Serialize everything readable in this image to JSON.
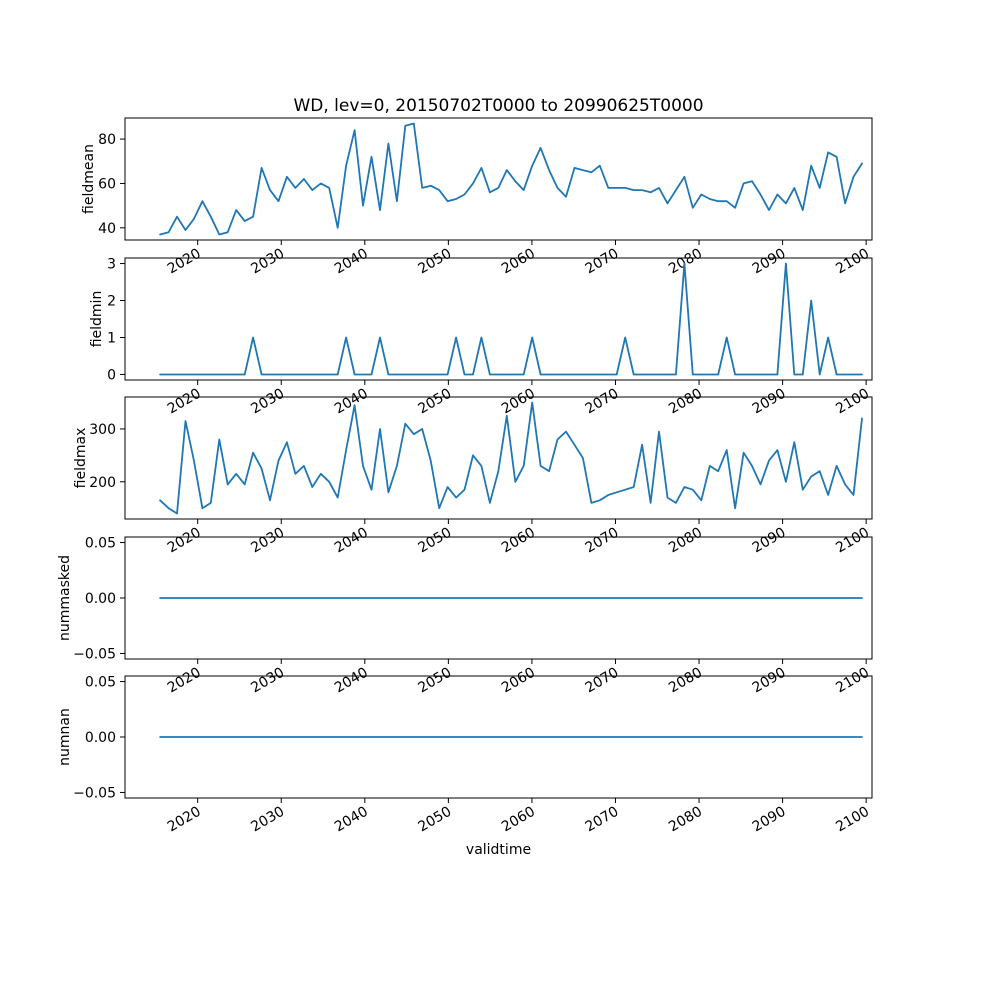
{
  "figure": {
    "title": "WD, lev=0, 20150702T0000 to 20990625T0000",
    "xlabel": "validtime",
    "line_color": "#1f77b4",
    "xlim": [
      2011.3,
      2100.7
    ],
    "x_tick_labels": [
      "2020",
      "2030",
      "2040",
      "2050",
      "2060",
      "2070",
      "2080",
      "2090",
      "2100"
    ]
  },
  "chart_data": [
    {
      "type": "line",
      "name": "fieldmean",
      "ylabel": "fieldmean",
      "ytick_values": [
        40,
        60,
        80
      ],
      "ytick_labels": [
        "40",
        "60",
        "80"
      ],
      "ylim": [
        34.5,
        89.5
      ],
      "x_start": 2015.5,
      "x_end": 2099.5,
      "values": [
        37,
        38,
        45,
        39,
        44,
        52,
        45,
        37,
        38,
        48,
        43,
        45,
        67,
        57,
        52,
        63,
        58,
        62,
        57,
        60,
        58,
        40,
        68,
        84,
        50,
        72,
        48,
        78,
        52,
        86,
        87,
        58,
        59,
        57,
        52,
        53,
        55,
        60,
        67,
        56,
        58,
        66,
        61,
        57,
        68,
        76,
        66,
        58,
        54,
        67,
        66,
        65,
        68,
        58,
        58,
        58,
        57,
        57,
        56,
        58,
        51,
        57,
        63,
        49,
        55,
        53,
        52,
        52,
        49,
        60,
        61,
        55,
        48,
        55,
        51,
        58,
        48,
        68,
        58,
        74,
        72,
        51,
        63,
        69
      ]
    },
    {
      "type": "line",
      "name": "fieldmin",
      "ylabel": "fieldmin",
      "ytick_values": [
        0,
        1,
        2,
        3
      ],
      "ytick_labels": [
        "0",
        "1",
        "2",
        "3"
      ],
      "ylim": [
        -0.15,
        3.15
      ],
      "x_start": 2015.5,
      "x_end": 2099.5,
      "values": [
        0,
        0,
        0,
        0,
        0,
        0,
        0,
        0,
        0,
        0,
        0,
        1,
        0,
        0,
        0,
        0,
        0,
        0,
        0,
        0,
        0,
        0,
        1,
        0,
        0,
        0,
        1,
        0,
        0,
        0,
        0,
        0,
        0,
        0,
        0,
        1,
        0,
        0,
        1,
        0,
        0,
        0,
        0,
        0,
        1,
        0,
        0,
        0,
        0,
        0,
        0,
        0,
        0,
        0,
        0,
        1,
        0,
        0,
        0,
        0,
        0,
        0,
        3,
        0,
        0,
        0,
        0,
        1,
        0,
        0,
        0,
        0,
        0,
        0,
        3,
        0,
        0,
        2,
        0,
        1,
        0,
        0,
        0,
        0
      ]
    },
    {
      "type": "line",
      "name": "fieldmax",
      "ylabel": "fieldmax",
      "ytick_values": [
        200,
        300
      ],
      "ytick_labels": [
        "200",
        "300"
      ],
      "ylim": [
        129.5,
        360.5
      ],
      "x_start": 2015.5,
      "x_end": 2099.5,
      "values": [
        165,
        150,
        140,
        315,
        240,
        150,
        160,
        280,
        195,
        215,
        195,
        255,
        225,
        165,
        240,
        275,
        215,
        230,
        190,
        215,
        200,
        170,
        260,
        345,
        230,
        185,
        300,
        180,
        230,
        310,
        290,
        300,
        240,
        150,
        190,
        170,
        185,
        250,
        230,
        160,
        220,
        325,
        200,
        230,
        350,
        230,
        220,
        280,
        295,
        270,
        245,
        160,
        165,
        175,
        180,
        185,
        190,
        270,
        160,
        295,
        170,
        160,
        190,
        185,
        165,
        230,
        220,
        260,
        150,
        255,
        230,
        195,
        240,
        260,
        200,
        275,
        185,
        210,
        220,
        175,
        230,
        195,
        175,
        320
      ]
    },
    {
      "type": "line",
      "name": "nummasked",
      "ylabel": "nummasked",
      "ytick_values": [
        -0.05,
        0,
        0.05
      ],
      "ytick_labels": [
        "−0.05",
        "0.00",
        "0.05"
      ],
      "ylim": [
        -0.055,
        0.055
      ],
      "x_start": 2015.5,
      "x_end": 2099.5,
      "values": [
        0,
        0,
        0,
        0,
        0,
        0,
        0,
        0,
        0,
        0,
        0,
        0,
        0,
        0,
        0,
        0,
        0,
        0,
        0,
        0,
        0,
        0,
        0,
        0,
        0,
        0,
        0,
        0,
        0,
        0,
        0,
        0,
        0,
        0,
        0,
        0,
        0,
        0,
        0,
        0,
        0,
        0,
        0,
        0,
        0,
        0,
        0,
        0,
        0,
        0,
        0,
        0,
        0,
        0,
        0,
        0,
        0,
        0,
        0,
        0,
        0,
        0,
        0,
        0,
        0,
        0,
        0,
        0,
        0,
        0,
        0,
        0,
        0,
        0,
        0,
        0,
        0,
        0,
        0,
        0,
        0,
        0,
        0,
        0
      ]
    },
    {
      "type": "line",
      "name": "numnan",
      "ylabel": "numnan",
      "ytick_values": [
        -0.05,
        0,
        0.05
      ],
      "ytick_labels": [
        "−0.05",
        "0.00",
        "0.05"
      ],
      "ylim": [
        -0.055,
        0.055
      ],
      "x_start": 2015.5,
      "x_end": 2099.5,
      "values": [
        0,
        0,
        0,
        0,
        0,
        0,
        0,
        0,
        0,
        0,
        0,
        0,
        0,
        0,
        0,
        0,
        0,
        0,
        0,
        0,
        0,
        0,
        0,
        0,
        0,
        0,
        0,
        0,
        0,
        0,
        0,
        0,
        0,
        0,
        0,
        0,
        0,
        0,
        0,
        0,
        0,
        0,
        0,
        0,
        0,
        0,
        0,
        0,
        0,
        0,
        0,
        0,
        0,
        0,
        0,
        0,
        0,
        0,
        0,
        0,
        0,
        0,
        0,
        0,
        0,
        0,
        0,
        0,
        0,
        0,
        0,
        0,
        0,
        0,
        0,
        0,
        0,
        0,
        0,
        0,
        0,
        0,
        0,
        0
      ]
    }
  ]
}
